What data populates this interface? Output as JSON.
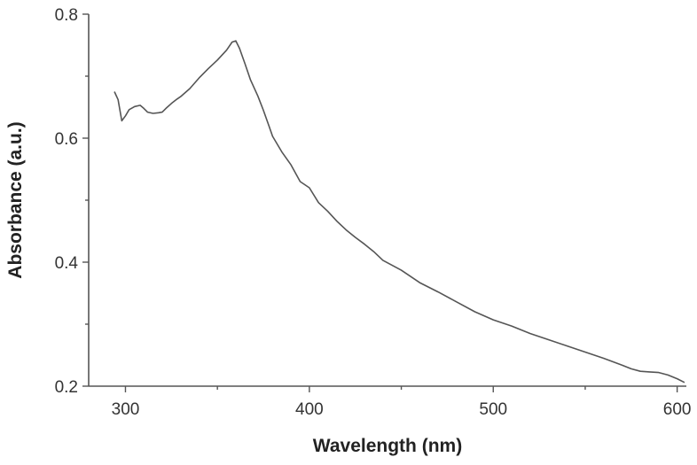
{
  "chart_data": {
    "type": "line",
    "title": "",
    "xlabel": "Wavelength (nm)",
    "ylabel": "Absorbance (a.u.)",
    "xlim": [
      280,
      605
    ],
    "ylim": [
      0.2,
      0.8
    ],
    "x_ticks": [
      300,
      400,
      500,
      600
    ],
    "y_ticks": [
      0.2,
      0.4,
      0.6,
      0.8
    ],
    "x_tick_labels": [
      "300",
      "400",
      "500",
      "600"
    ],
    "y_tick_labels": [
      "0.2",
      "0.4",
      "0.6",
      "0.8"
    ],
    "grid": false,
    "legend": "none",
    "colors": {
      "line": "#555555",
      "axis": "#555555"
    },
    "series": [
      {
        "x": [
          294,
          296,
          298,
          300,
          302,
          305,
          308,
          310,
          312,
          315,
          318,
          320,
          322,
          325,
          328,
          330,
          335,
          340,
          345,
          350,
          355,
          358,
          360,
          362,
          365,
          368,
          372,
          375,
          378,
          380,
          385,
          390,
          395,
          400,
          405,
          410,
          415,
          420,
          425,
          430,
          435,
          440,
          450,
          460,
          470,
          480,
          490,
          500,
          510,
          520,
          530,
          540,
          550,
          560,
          570,
          575,
          580,
          585,
          590,
          595,
          600,
          604
        ],
        "y": [
          0.675,
          0.662,
          0.628,
          0.636,
          0.646,
          0.651,
          0.653,
          0.648,
          0.642,
          0.64,
          0.641,
          0.642,
          0.648,
          0.656,
          0.663,
          0.667,
          0.68,
          0.697,
          0.712,
          0.726,
          0.742,
          0.755,
          0.757,
          0.745,
          0.72,
          0.694,
          0.668,
          0.645,
          0.62,
          0.603,
          0.578,
          0.557,
          0.53,
          0.52,
          0.496,
          0.482,
          0.466,
          0.452,
          0.44,
          0.429,
          0.417,
          0.403,
          0.387,
          0.367,
          0.352,
          0.336,
          0.32,
          0.307,
          0.297,
          0.285,
          0.275,
          0.265,
          0.255,
          0.245,
          0.234,
          0.228,
          0.224,
          0.223,
          0.222,
          0.218,
          0.212,
          0.206
        ]
      }
    ]
  }
}
